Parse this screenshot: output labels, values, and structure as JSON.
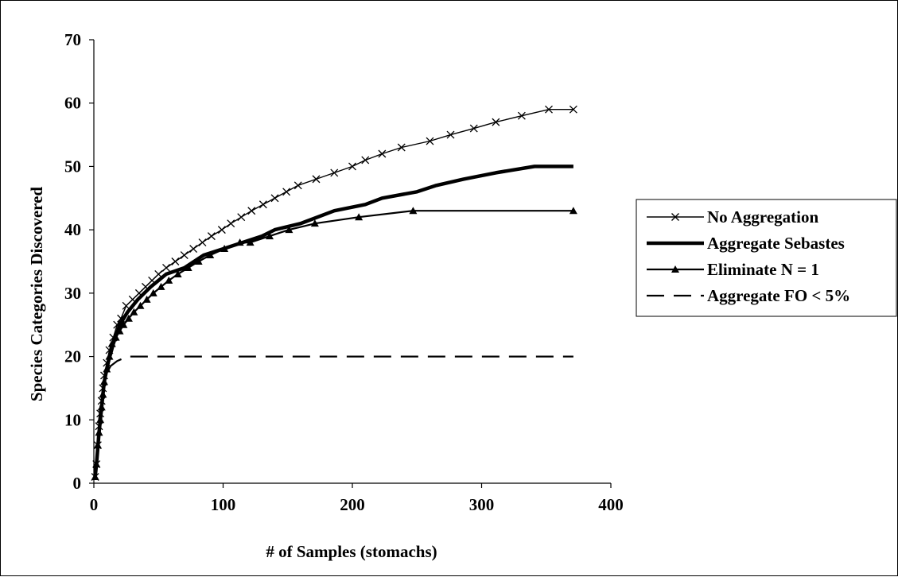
{
  "chart_data": {
    "type": "line",
    "title": "",
    "xlabel": "# of Samples (stomachs)",
    "ylabel": "Species Categories Discovered",
    "xlim": [
      0,
      400
    ],
    "ylim": [
      0,
      70
    ],
    "x_ticks": [
      "0",
      "100",
      "200",
      "300",
      "400"
    ],
    "y_ticks": [
      "0",
      "10",
      "20",
      "30",
      "40",
      "50",
      "60",
      "70"
    ],
    "grid": false,
    "legend_position": "right",
    "series": [
      {
        "name": "No Aggregation",
        "style": "solid-thin",
        "marker": "x",
        "points": [
          [
            1,
            1
          ],
          [
            2,
            3
          ],
          [
            3,
            6
          ],
          [
            4,
            9
          ],
          [
            5,
            11
          ],
          [
            6,
            13
          ],
          [
            7,
            15
          ],
          [
            8,
            17
          ],
          [
            10,
            19
          ],
          [
            12,
            21
          ],
          [
            15,
            23
          ],
          [
            18,
            25
          ],
          [
            21,
            26
          ],
          [
            25,
            28
          ],
          [
            30,
            29
          ],
          [
            35,
            30
          ],
          [
            40,
            31
          ],
          [
            45,
            32
          ],
          [
            50,
            33
          ],
          [
            56,
            34
          ],
          [
            63,
            35
          ],
          [
            70,
            36
          ],
          [
            77,
            37
          ],
          [
            84,
            38
          ],
          [
            91,
            39
          ],
          [
            99,
            40
          ],
          [
            106,
            41
          ],
          [
            114,
            42
          ],
          [
            122,
            43
          ],
          [
            131,
            44
          ],
          [
            140,
            45
          ],
          [
            149,
            46
          ],
          [
            158,
            47
          ],
          [
            172,
            48
          ],
          [
            186,
            49
          ],
          [
            200,
            50
          ],
          [
            210,
            51
          ],
          [
            223,
            52
          ],
          [
            238,
            53
          ],
          [
            260,
            54
          ],
          [
            276,
            55
          ],
          [
            294,
            56
          ],
          [
            311,
            57
          ],
          [
            331,
            58
          ],
          [
            352,
            59
          ],
          [
            371,
            59
          ]
        ]
      },
      {
        "name": "Aggregate Sebastes",
        "style": "solid-thick",
        "marker": "none",
        "points": [
          [
            1,
            1
          ],
          [
            2,
            3
          ],
          [
            4,
            8
          ],
          [
            6,
            12
          ],
          [
            8,
            16
          ],
          [
            11,
            19
          ],
          [
            15,
            22
          ],
          [
            20,
            25
          ],
          [
            26,
            27
          ],
          [
            34,
            29
          ],
          [
            44,
            31
          ],
          [
            56,
            33
          ],
          [
            70,
            34
          ],
          [
            85,
            36
          ],
          [
            100,
            37
          ],
          [
            115,
            38
          ],
          [
            130,
            39
          ],
          [
            140,
            40
          ],
          [
            160,
            41
          ],
          [
            186,
            43
          ],
          [
            210,
            44
          ],
          [
            223,
            45
          ],
          [
            250,
            46
          ],
          [
            265,
            47
          ],
          [
            286,
            48
          ],
          [
            311,
            49
          ],
          [
            341,
            50
          ],
          [
            371,
            50
          ]
        ]
      },
      {
        "name": "Eliminate N = 1",
        "style": "solid-medium",
        "marker": "triangle",
        "points": [
          [
            1,
            1
          ],
          [
            2,
            3
          ],
          [
            3,
            6
          ],
          [
            4,
            8
          ],
          [
            5,
            10
          ],
          [
            6,
            12
          ],
          [
            7,
            14
          ],
          [
            8,
            16
          ],
          [
            10,
            18
          ],
          [
            12,
            20
          ],
          [
            14,
            22
          ],
          [
            17,
            23
          ],
          [
            20,
            24
          ],
          [
            23,
            25
          ],
          [
            27,
            26
          ],
          [
            31,
            27
          ],
          [
            36,
            28
          ],
          [
            41,
            29
          ],
          [
            46,
            30
          ],
          [
            52,
            31
          ],
          [
            58,
            32
          ],
          [
            65,
            33
          ],
          [
            73,
            34
          ],
          [
            81,
            35
          ],
          [
            90,
            36
          ],
          [
            101,
            37
          ],
          [
            113,
            38
          ],
          [
            121,
            38
          ],
          [
            136,
            39
          ],
          [
            151,
            40
          ],
          [
            171,
            41
          ],
          [
            205,
            42
          ],
          [
            247,
            43
          ],
          [
            371,
            43
          ]
        ]
      },
      {
        "name": "Aggregate FO < 5%",
        "style": "dashed",
        "marker": "none",
        "points": [
          [
            1,
            1
          ],
          [
            2,
            4
          ],
          [
            3,
            7
          ],
          [
            4,
            10
          ],
          [
            5,
            12
          ],
          [
            7,
            15
          ],
          [
            9,
            17
          ],
          [
            13,
            18.5
          ],
          [
            18,
            19.3
          ],
          [
            26,
            20
          ],
          [
            371,
            20
          ]
        ]
      }
    ]
  }
}
